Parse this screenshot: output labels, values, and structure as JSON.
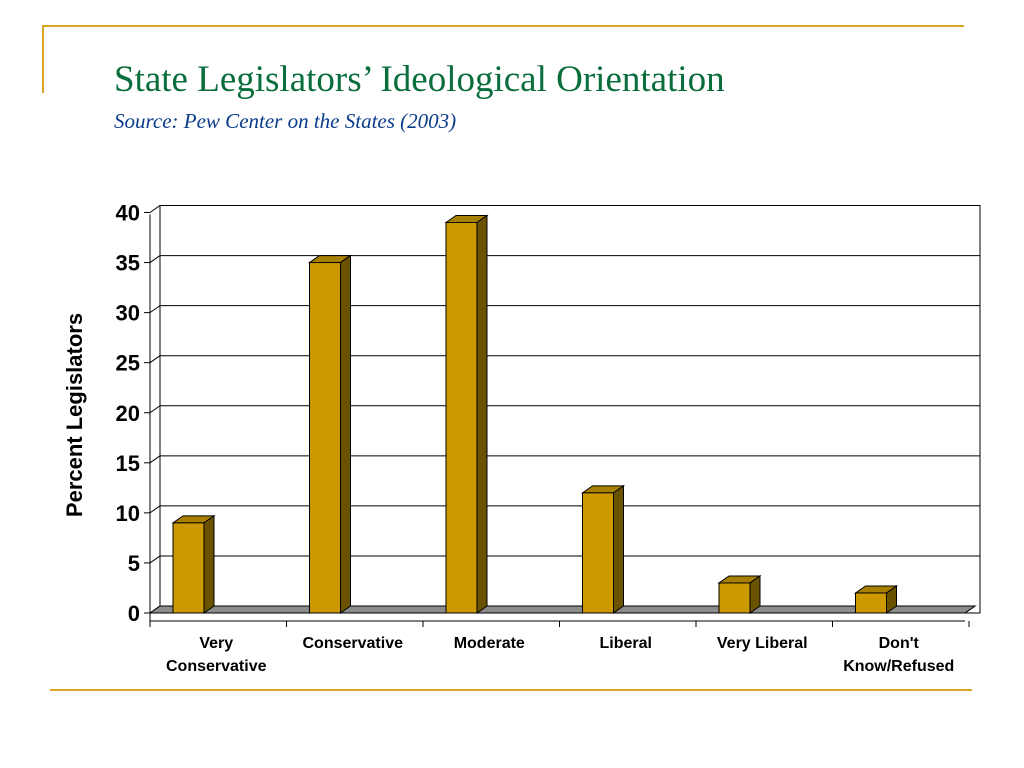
{
  "slide": {
    "title": "State Legislators’ Ideological Orientation",
    "subtitle": "Source: Pew Center on the States (2003)",
    "accent_color": "#DAA520",
    "title_color": "#0A6E3C",
    "subtitle_color": "#0A3C8C"
  },
  "chart_data": {
    "type": "bar",
    "style": "3d",
    "categories": [
      [
        "Very",
        "Conservative"
      ],
      [
        "Conservative"
      ],
      [
        "Moderate"
      ],
      [
        "Liberal"
      ],
      [
        "Very Liberal"
      ],
      [
        "Don't",
        "Know/Refused"
      ]
    ],
    "values": [
      9,
      35,
      39,
      12,
      3,
      2
    ],
    "title": "",
    "xlabel": "",
    "ylabel": "Percent Legislators",
    "ylim": [
      0,
      40
    ],
    "yticks": [
      0,
      5,
      10,
      15,
      20,
      25,
      30,
      35,
      40
    ],
    "grid": true,
    "legend": "none",
    "colors": {
      "bar_front": "#CC9900",
      "bar_side": "#6B5200",
      "bar_top": "#A88000",
      "floor": "#8C8C8C"
    }
  }
}
